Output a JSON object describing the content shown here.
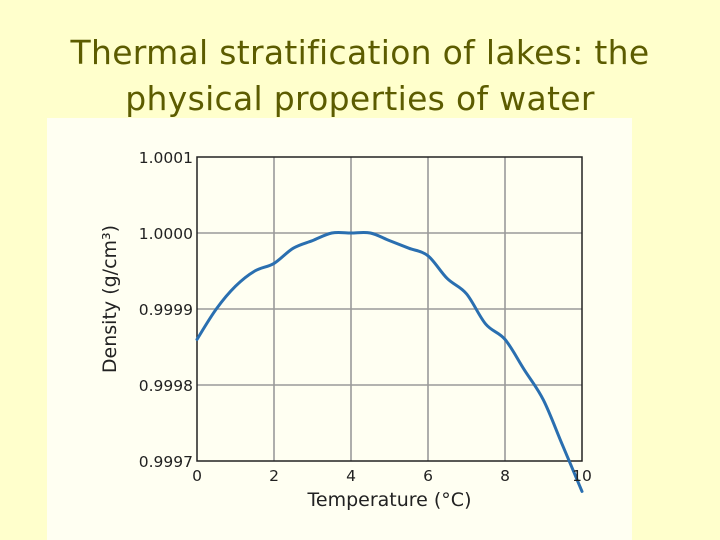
{
  "slide": {
    "title_line1": "Thermal stratification of lakes: the",
    "title_line2": "physical properties of water"
  },
  "colors": {
    "background": "#ffffcc",
    "title": "#5c5c00",
    "curve": "#2a6fb0",
    "grid": "#9a9a9a"
  },
  "chart_data": {
    "type": "line",
    "title": "",
    "xlabel": "Temperature (°C)",
    "ylabel": "Density (g/cm³)",
    "xlim": [
      0,
      10
    ],
    "ylim": [
      0.9997,
      1.0001
    ],
    "xticks": [
      0,
      2,
      4,
      6,
      8,
      10
    ],
    "xtick_labels": [
      "0",
      "2",
      "4",
      "6",
      "8",
      "10"
    ],
    "yticks": [
      0.9997,
      0.9998,
      0.9999,
      1.0,
      1.0001
    ],
    "ytick_labels": [
      "0.9997",
      "0.9998",
      "0.9999",
      "1.0000",
      "1.0001"
    ],
    "grid": true,
    "series": [
      {
        "x": [
          0,
          0.5,
          1,
          1.5,
          2,
          2.5,
          3,
          3.5,
          4,
          4.5,
          5,
          5.5,
          6,
          6.5,
          7,
          7.5,
          8,
          8.5,
          9,
          9.5,
          10
        ],
        "y": [
          0.99986,
          0.9999,
          0.99993,
          0.99995,
          0.99996,
          0.99998,
          0.99999,
          1.0,
          1.0,
          1.0,
          0.99999,
          0.99998,
          0.99997,
          0.99994,
          0.99992,
          0.99988,
          0.99986,
          0.99982,
          0.99978,
          0.99972,
          0.99966
        ]
      }
    ]
  }
}
